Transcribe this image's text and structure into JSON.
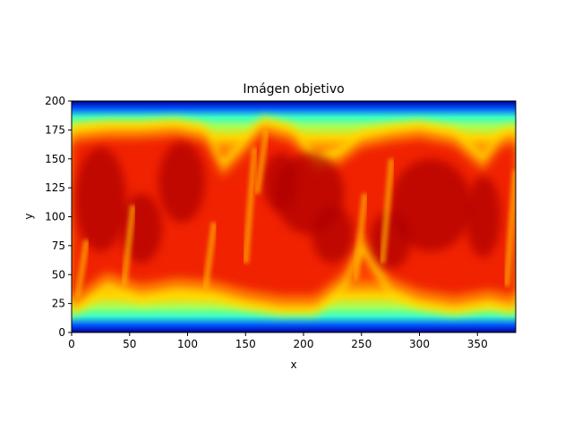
{
  "chart_data": {
    "type": "heatmap",
    "title": "Imágen objetivo",
    "xlabel": "x",
    "ylabel": "y",
    "xlim": [
      0,
      383
    ],
    "ylim": [
      0,
      200
    ],
    "x_ticks": [
      "0",
      "50",
      "100",
      "150",
      "200",
      "250",
      "300",
      "350"
    ],
    "y_ticks": [
      "0",
      "25",
      "50",
      "75",
      "100",
      "125",
      "150",
      "175",
      "200"
    ],
    "colormap": "jet",
    "grid": false,
    "legend": "none",
    "profile_note_lower_edge": [
      {
        "x": 0,
        "y": 18
      },
      {
        "x": 30,
        "y": 40
      },
      {
        "x": 60,
        "y": 30
      },
      {
        "x": 90,
        "y": 35
      },
      {
        "x": 120,
        "y": 33
      },
      {
        "x": 150,
        "y": 25
      },
      {
        "x": 180,
        "y": 20
      },
      {
        "x": 210,
        "y": 20
      },
      {
        "x": 235,
        "y": 40
      },
      {
        "x": 250,
        "y": 75
      },
      {
        "x": 275,
        "y": 35
      },
      {
        "x": 300,
        "y": 25
      },
      {
        "x": 330,
        "y": 20
      },
      {
        "x": 360,
        "y": 25
      },
      {
        "x": 383,
        "y": 20
      }
    ],
    "profile_upper_edge": [
      {
        "x": 0,
        "y": 175
      },
      {
        "x": 30,
        "y": 178
      },
      {
        "x": 60,
        "y": 178
      },
      {
        "x": 90,
        "y": 180
      },
      {
        "x": 115,
        "y": 175
      },
      {
        "x": 130,
        "y": 145
      },
      {
        "x": 145,
        "y": 160
      },
      {
        "x": 165,
        "y": 182
      },
      {
        "x": 190,
        "y": 175
      },
      {
        "x": 210,
        "y": 150
      },
      {
        "x": 230,
        "y": 155
      },
      {
        "x": 250,
        "y": 170
      },
      {
        "x": 275,
        "y": 175
      },
      {
        "x": 300,
        "y": 178
      },
      {
        "x": 330,
        "y": 172
      },
      {
        "x": 355,
        "y": 150
      },
      {
        "x": 370,
        "y": 170
      },
      {
        "x": 383,
        "y": 175
      }
    ]
  }
}
